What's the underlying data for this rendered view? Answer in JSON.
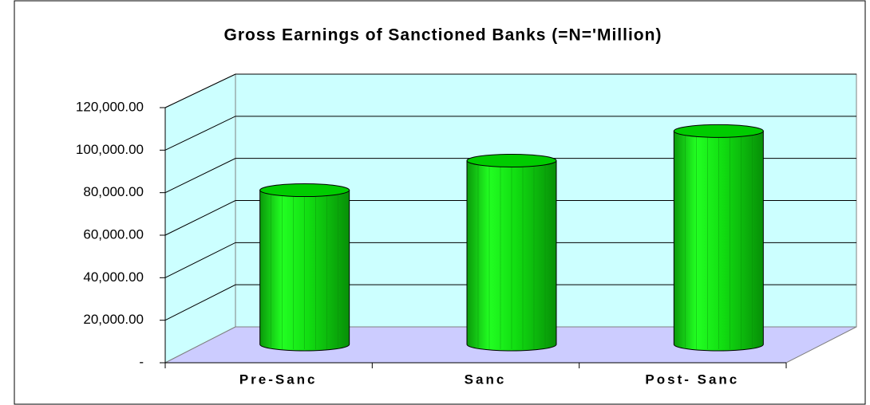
{
  "chart_data": {
    "type": "bar",
    "title": "Gross Earnings of Sanctioned Banks (=N='Million)",
    "categories": [
      "Pre-Sanc",
      "Sanc",
      "Post- Sanc"
    ],
    "values": [
      73000,
      87000,
      101000
    ],
    "color": "#00ee00",
    "ylim": [
      0,
      120000
    ],
    "yticks": [
      {
        "value": 0,
        "label": "-"
      },
      {
        "value": 20000,
        "label": "20,000.00"
      },
      {
        "value": 40000,
        "label": "40,000.00"
      },
      {
        "value": 60000,
        "label": "60,000.00"
      },
      {
        "value": 80000,
        "label": "80,000.00"
      },
      {
        "value": 100000,
        "label": "100,000.00"
      },
      {
        "value": 120000,
        "label": "120,000.00"
      }
    ],
    "grid": true
  }
}
